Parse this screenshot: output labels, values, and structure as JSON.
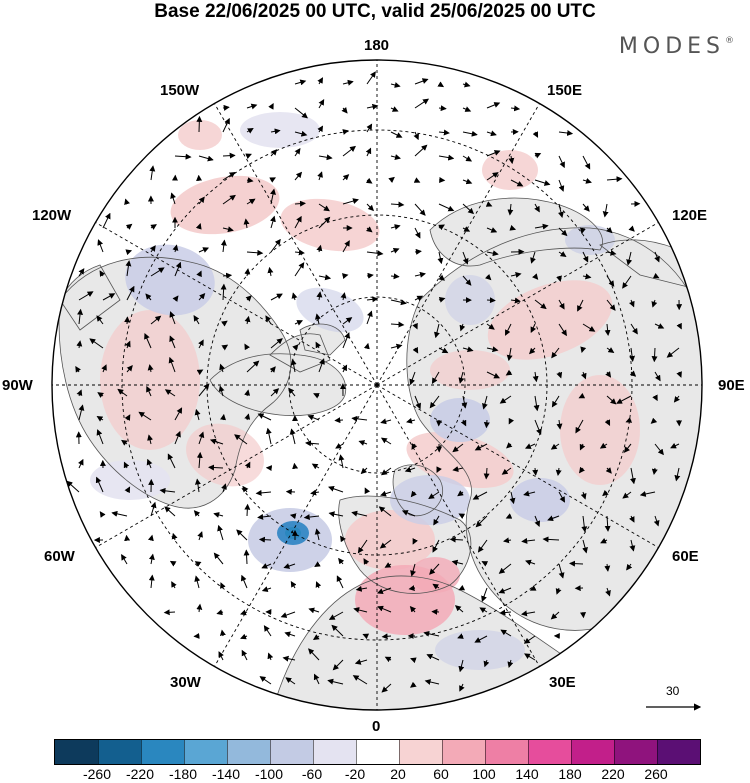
{
  "title": "Base 22/06/2025 00 UTC, valid 25/06/2025 00 UTC",
  "brand": "MODES",
  "brand_mark": "®",
  "longitude_labels": {
    "top": "180",
    "bottom": "0",
    "left": "90W",
    "right": "90E",
    "nw_upper": "150W",
    "nw_lower": "120W",
    "ne_upper": "150E",
    "ne_lower": "120E",
    "sw_upper": "60W",
    "sw_lower": "30W",
    "se_upper": "60E",
    "se_lower": "30E"
  },
  "reference_vector": "30",
  "colorbar": {
    "colors": [
      "#0d3a5c",
      "#135f8f",
      "#2a87bf",
      "#5aa6d4",
      "#93b9dc",
      "#c3cbe4",
      "#e4e3f1",
      "#ffffff",
      "#f7d3d3",
      "#f3aab7",
      "#ee7fa5",
      "#e64d9c",
      "#c21f8a",
      "#8f137d",
      "#5b0f74"
    ],
    "tick_labels": [
      "-260",
      "-220",
      "-180",
      "-140",
      "-100",
      "-60",
      "-20",
      "20",
      "60",
      "100",
      "140",
      "180",
      "220",
      "260"
    ]
  },
  "map": {
    "land_color": "#e8e8e8",
    "positive_anomaly_color": "#f4cccc",
    "negative_anomaly_color": "#c9cde6",
    "strong_negative_color": "#3d8cc7"
  }
}
